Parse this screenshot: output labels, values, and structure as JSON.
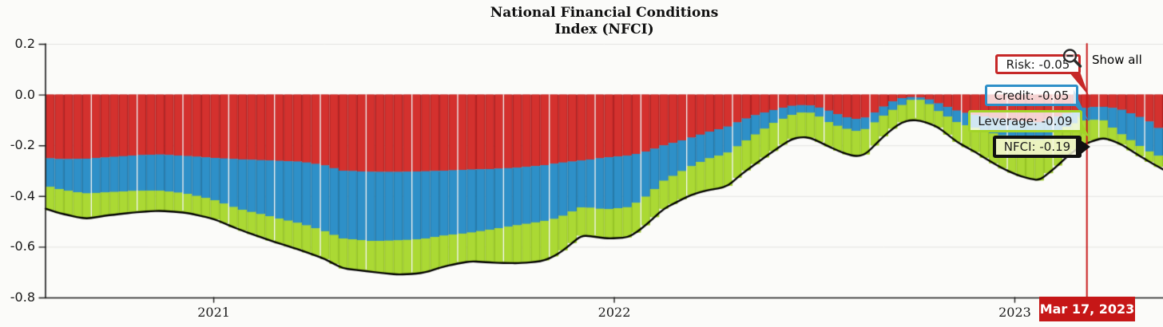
{
  "title": {
    "line1": "National Financial Conditions",
    "line2": "Index (NFCI)"
  },
  "controls": {
    "show_all": "Show all",
    "zoom_out_icon": "magnifier-minus-icon"
  },
  "marker": {
    "date_label": "Mar 17, 2023"
  },
  "tooltips": {
    "risk": {
      "text": "Risk: -0.05",
      "border_color": "#c62828"
    },
    "credit": {
      "text": "Credit: -0.05",
      "border_color": "#2e8fc8"
    },
    "leverage": {
      "text": "Leverage: -0.09",
      "border_color": "#a2d427"
    },
    "nfci": {
      "text": "NFCI: -0.19",
      "border_color": "#111111"
    }
  },
  "colors": {
    "risk_bar": "#d4312e",
    "risk_bar_edge": "#b02020",
    "credit_bar": "#2e90c8",
    "credit_bar_edge": "#2379a9",
    "leverage_bar": "#abd934",
    "leverage_bar_edge": "#96c425",
    "nfci_line": "#000000",
    "marker_line": "#c61717",
    "grid": "#e3e3e0",
    "axis": "#1a1a1a",
    "background": "#fbfbf9"
  },
  "chart_data": {
    "type": "bar",
    "stacked": true,
    "title": "National Financial Conditions Index (NFCI)",
    "x_unit": "decimal_year",
    "x": [
      2020.58,
      2020.62,
      2020.68,
      2020.74,
      2020.8,
      2020.86,
      2020.93,
      2021.0,
      2021.06,
      2021.14,
      2021.22,
      2021.28,
      2021.32,
      2021.4,
      2021.46,
      2021.52,
      2021.58,
      2021.64,
      2021.7,
      2021.76,
      2021.82,
      2021.86,
      2021.92,
      2021.98,
      2022.04,
      2022.09,
      2022.12,
      2022.16,
      2022.2,
      2022.24,
      2022.28,
      2022.32,
      2022.36,
      2022.4,
      2022.44,
      2022.48,
      2022.51,
      2022.54,
      2022.57,
      2022.6,
      2022.63,
      2022.66,
      2022.69,
      2022.72,
      2022.75,
      2022.78,
      2022.81,
      2022.86,
      2022.9,
      2022.94,
      2022.98,
      2023.02,
      2023.06,
      2023.1,
      2023.14,
      2023.18,
      2023.22,
      2023.26,
      2023.3,
      2023.33,
      2023.37
    ],
    "series": [
      {
        "name": "Risk",
        "color": "#d4312e",
        "edge_color": "#b02020",
        "values": [
          -0.25,
          -0.255,
          -0.253,
          -0.247,
          -0.24,
          -0.236,
          -0.242,
          -0.25,
          -0.255,
          -0.26,
          -0.265,
          -0.28,
          -0.3,
          -0.305,
          -0.305,
          -0.303,
          -0.3,
          -0.296,
          -0.293,
          -0.288,
          -0.28,
          -0.27,
          -0.26,
          -0.248,
          -0.24,
          -0.22,
          -0.202,
          -0.185,
          -0.166,
          -0.145,
          -0.129,
          -0.1,
          -0.077,
          -0.06,
          -0.045,
          -0.04,
          -0.05,
          -0.066,
          -0.085,
          -0.097,
          -0.09,
          -0.06,
          -0.03,
          -0.013,
          -0.009,
          -0.015,
          -0.035,
          -0.066,
          -0.08,
          -0.09,
          -0.1,
          -0.105,
          -0.11,
          -0.09,
          -0.07,
          -0.05,
          -0.048,
          -0.056,
          -0.08,
          -0.1,
          -0.145
        ]
      },
      {
        "name": "Credit",
        "color": "#2e90c8",
        "edge_color": "#2379a9",
        "values": [
          -0.11,
          -0.12,
          -0.137,
          -0.138,
          -0.14,
          -0.142,
          -0.148,
          -0.165,
          -0.195,
          -0.22,
          -0.245,
          -0.26,
          -0.267,
          -0.273,
          -0.27,
          -0.267,
          -0.255,
          -0.249,
          -0.237,
          -0.227,
          -0.22,
          -0.217,
          -0.183,
          -0.205,
          -0.203,
          -0.17,
          -0.141,
          -0.125,
          -0.11,
          -0.105,
          -0.104,
          -0.09,
          -0.073,
          -0.05,
          -0.037,
          -0.026,
          -0.035,
          -0.047,
          -0.045,
          -0.048,
          -0.045,
          -0.037,
          -0.035,
          -0.027,
          -0.005,
          -0.015,
          -0.031,
          -0.047,
          -0.05,
          -0.06,
          -0.065,
          -0.07,
          -0.07,
          -0.06,
          -0.05,
          -0.05,
          -0.052,
          -0.094,
          -0.11,
          -0.12,
          -0.105
        ]
      },
      {
        "name": "Leverage",
        "color": "#abd934",
        "edge_color": "#96c425",
        "values": [
          -0.09,
          -0.095,
          -0.1,
          -0.09,
          -0.085,
          -0.08,
          -0.075,
          -0.075,
          -0.08,
          -0.095,
          -0.105,
          -0.11,
          -0.118,
          -0.122,
          -0.135,
          -0.135,
          -0.12,
          -0.112,
          -0.133,
          -0.15,
          -0.158,
          -0.143,
          -0.11,
          -0.115,
          -0.12,
          -0.11,
          -0.11,
          -0.11,
          -0.114,
          -0.125,
          -0.132,
          -0.12,
          -0.115,
          -0.11,
          -0.094,
          -0.097,
          -0.1,
          -0.095,
          -0.1,
          -0.1,
          -0.1,
          -0.085,
          -0.075,
          -0.067,
          -0.083,
          -0.08,
          -0.064,
          -0.079,
          -0.095,
          -0.115,
          -0.135,
          -0.15,
          -0.16,
          -0.14,
          -0.11,
          -0.09,
          -0.07,
          -0.04,
          -0.04,
          -0.04,
          -0.045
        ]
      }
    ],
    "line_series": {
      "name": "NFCI",
      "color": "#000000",
      "values": [
        -0.45,
        -0.47,
        -0.49,
        -0.475,
        -0.465,
        -0.458,
        -0.465,
        -0.49,
        -0.53,
        -0.575,
        -0.615,
        -0.65,
        -0.685,
        -0.7,
        -0.71,
        -0.705,
        -0.675,
        -0.657,
        -0.663,
        -0.665,
        -0.658,
        -0.63,
        -0.553,
        -0.568,
        -0.563,
        -0.5,
        -0.453,
        -0.42,
        -0.39,
        -0.375,
        -0.365,
        -0.31,
        -0.265,
        -0.22,
        -0.176,
        -0.163,
        -0.185,
        -0.208,
        -0.23,
        -0.245,
        -0.235,
        -0.182,
        -0.14,
        -0.107,
        -0.097,
        -0.11,
        -0.13,
        -0.192,
        -0.225,
        -0.265,
        -0.3,
        -0.325,
        -0.34,
        -0.29,
        -0.23,
        -0.19,
        -0.17,
        -0.19,
        -0.23,
        -0.26,
        -0.295
      ]
    },
    "ylim": [
      -0.8,
      0.2
    ],
    "y_tick_values": [
      0.2,
      0,
      -0.2,
      -0.4,
      -0.6,
      -0.8
    ],
    "y_tick_labels": [
      "0.2",
      "0.0",
      "-0.2",
      "-0.4",
      "-0.6",
      "-0.8"
    ],
    "x_tick_values": [
      2021,
      2022,
      2023
    ],
    "x_tick_labels": [
      "2021",
      "2022",
      "2023"
    ],
    "grid": "horizontal",
    "bar_count": 122,
    "marker": {
      "x_year": 2023.18,
      "date": "Mar 17, 2023",
      "color": "#c61717",
      "values": {
        "Risk": -0.05,
        "Credit": -0.05,
        "Leverage": -0.09,
        "NFCI": -0.19
      }
    }
  }
}
